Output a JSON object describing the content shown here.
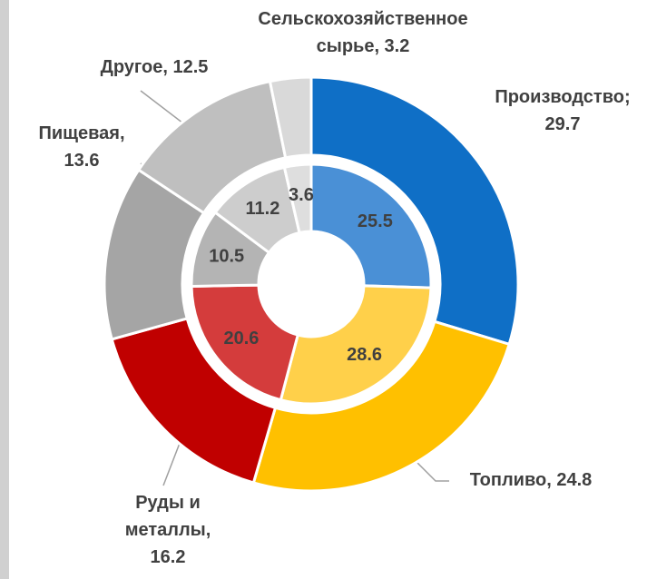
{
  "chart_data": {
    "type": "nested-donut",
    "series": [
      {
        "values": [
          29.7,
          24.8,
          16.2,
          13.6,
          12.5,
          3.2
        ],
        "colors": [
          "#0f6fc6",
          "#ffc000",
          "#c00000",
          "#a5a5a5",
          "#bfbfbf",
          "#d9d9d9"
        ],
        "value_labels": [
          "Производство; 29.7",
          "Топливо, 24.8",
          "Руды и металлы, 16.2",
          "Пищевая, 13.6",
          "Другое, 12.5",
          "Сельскохозяйственное сырье, 3.2"
        ]
      },
      {
        "values": [
          25.5,
          28.6,
          20.6,
          10.5,
          11.2,
          3.6
        ],
        "colors": [
          "#4a90d6",
          "#ffd04a",
          "#d43c3c",
          "#b4b4b4",
          "#cdcdcd",
          "#dedede"
        ]
      }
    ]
  }
}
